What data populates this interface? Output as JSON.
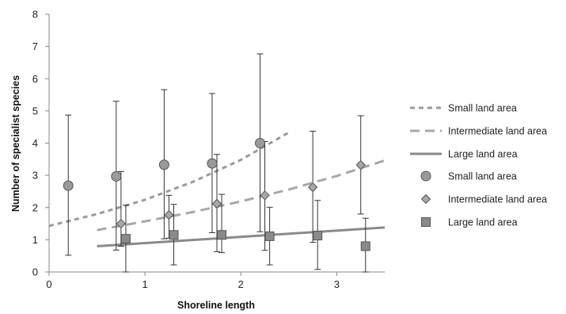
{
  "chart_data": {
    "type": "scatter",
    "title": "",
    "xlabel": "Shoreline length",
    "ylabel": "Number of specialist species",
    "xlim": [
      0,
      3.5
    ],
    "ylim": [
      0,
      8
    ],
    "xticks": [
      "0",
      "1",
      "2",
      "3"
    ],
    "yticks": [
      "0",
      "1",
      "2",
      "3",
      "4",
      "5",
      "6",
      "7",
      "8"
    ],
    "grid": false,
    "legend_position": "right",
    "colors": {
      "small": "#9a9a9a",
      "intermediate": "#a8a8a8",
      "large": "#8a8a8a",
      "marker_edge": "#555555",
      "error_bar": "#333333",
      "axis": "#888888"
    },
    "lines": [
      {
        "name": "Small land area",
        "style": "short-dash",
        "x": [
          0,
          0.5,
          1.0,
          1.5,
          2.0,
          2.5
        ],
        "y": [
          1.43,
          1.8,
          2.24,
          2.8,
          3.48,
          4.33
        ]
      },
      {
        "name": "Intermediate land area",
        "style": "long-dash",
        "x": [
          0.5,
          1.0,
          1.5,
          2.0,
          2.5,
          3.0,
          3.5
        ],
        "y": [
          1.3,
          1.57,
          1.86,
          2.19,
          2.56,
          2.98,
          3.46
        ]
      },
      {
        "name": "Large land area",
        "style": "solid",
        "x": [
          0.5,
          3.5
        ],
        "y": [
          0.8,
          1.38
        ]
      }
    ],
    "points": [
      {
        "name": "Small land area",
        "marker": "circle",
        "x": [
          0.2,
          0.7,
          1.2,
          1.7,
          2.2
        ],
        "y": [
          2.68,
          2.97,
          3.33,
          3.37,
          4.0
        ],
        "err_low": [
          0.52,
          0.68,
          1.03,
          1.22,
          1.25
        ],
        "err_high": [
          4.87,
          5.3,
          5.66,
          5.54,
          6.77
        ]
      },
      {
        "name": "Intermediate land area",
        "marker": "diamond",
        "x": [
          0.75,
          1.25,
          1.75,
          2.25,
          2.75,
          3.25
        ],
        "y": [
          1.5,
          1.77,
          2.12,
          2.38,
          2.63,
          3.32
        ],
        "err_low": [
          0.8,
          1.05,
          0.63,
          0.67,
          0.92,
          1.8
        ],
        "err_high": [
          3.12,
          2.38,
          3.65,
          4.05,
          4.37,
          4.85
        ]
      },
      {
        "name": "Large land area",
        "marker": "square",
        "x": [
          0.8,
          1.3,
          1.8,
          2.3,
          2.8,
          3.3
        ],
        "y": [
          1.03,
          1.15,
          1.15,
          1.11,
          1.13,
          0.8
        ],
        "err_low": [
          0.0,
          0.22,
          0.6,
          0.22,
          0.08,
          0.0
        ],
        "err_high": [
          2.07,
          2.1,
          2.41,
          2.01,
          2.22,
          1.67
        ]
      }
    ]
  }
}
